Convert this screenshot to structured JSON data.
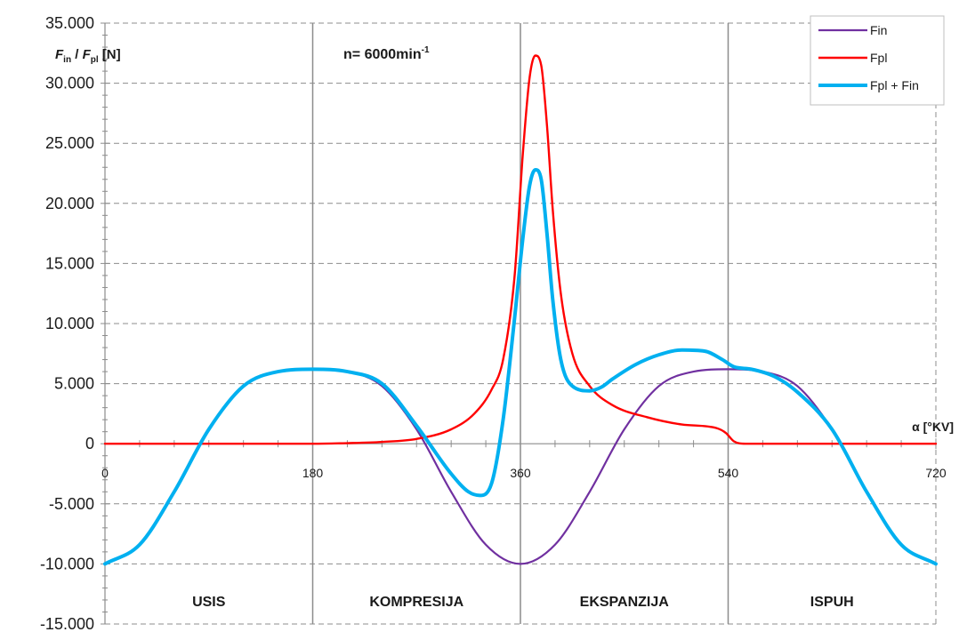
{
  "chart_data": {
    "type": "line",
    "ylabel": {
      "f": "F",
      "sub1": "in",
      "sep": " / ",
      "sub2": "pl",
      "unit": " [N]"
    },
    "xlabel": "α [°KV]",
    "annotation": {
      "base": "n= 6000min",
      "sup": "-1"
    },
    "xlim": [
      0,
      720
    ],
    "ylim": [
      -15000,
      35000
    ],
    "x_ticks": [
      0,
      180,
      360,
      540,
      720
    ],
    "x_tick_labels": [
      "0",
      "180",
      "360",
      "540",
      "720"
    ],
    "x_minor_step": 30,
    "y_ticks": [
      -15000,
      -10000,
      -5000,
      0,
      5000,
      10000,
      15000,
      20000,
      25000,
      30000,
      35000
    ],
    "y_tick_labels": [
      "-15.000",
      "-10.000",
      "-5.000",
      "0",
      "5.000",
      "10.000",
      "15.000",
      "20.000",
      "25.000",
      "30.000",
      "35.000"
    ],
    "y_minor_step": 1000,
    "grid": true,
    "phase_dividers": [
      180,
      360,
      540
    ],
    "phases": [
      {
        "label": "USIS",
        "center": 90
      },
      {
        "label": "KOMPRESIJA",
        "center": 270
      },
      {
        "label": "EKSPANZIJA",
        "center": 450
      },
      {
        "label": "ISPUH",
        "center": 630
      }
    ],
    "legend_position": "top-right",
    "series": [
      {
        "name": "Fin",
        "color": "#7030a0",
        "x": [
          0,
          30,
          60,
          90,
          120,
          150,
          180,
          210,
          240,
          270,
          300,
          330,
          360,
          390,
          420,
          450,
          480,
          510,
          540,
          570,
          600,
          630,
          660,
          690,
          720
        ],
        "y": [
          -10000,
          -8400,
          -4000,
          1200,
          4800,
          6000,
          6200,
          6000,
          4800,
          1200,
          -4000,
          -8400,
          -10000,
          -8400,
          -4000,
          1200,
          4800,
          6000,
          6200,
          6000,
          4800,
          1200,
          -4000,
          -8400,
          -10000
        ]
      },
      {
        "name": "Fpl",
        "color": "#ff0000",
        "x": [
          0,
          60,
          120,
          180,
          210,
          240,
          270,
          300,
          320,
          335,
          345,
          355,
          362,
          368,
          373,
          378,
          383,
          388,
          395,
          405,
          420,
          440,
          470,
          500,
          530,
          538,
          545,
          555,
          570,
          600,
          660,
          720
        ],
        "y": [
          0,
          0,
          0,
          0,
          50,
          150,
          400,
          1200,
          2500,
          4500,
          7000,
          14000,
          24000,
          30500,
          32300,
          31500,
          26500,
          19500,
          12500,
          7500,
          4800,
          3200,
          2200,
          1600,
          1300,
          900,
          200,
          0,
          0,
          0,
          0,
          0
        ]
      },
      {
        "name": "Fpl + Fin",
        "color": "#00b0f0",
        "x": [
          0,
          30,
          60,
          90,
          120,
          150,
          180,
          210,
          240,
          270,
          300,
          315,
          325,
          335,
          345,
          355,
          362,
          368,
          373,
          378,
          383,
          388,
          395,
          405,
          420,
          430,
          440,
          460,
          480,
          500,
          520,
          535,
          545,
          560,
          580,
          600,
          630,
          660,
          690,
          720
        ],
        "y": [
          -10000,
          -8400,
          -4000,
          1200,
          4800,
          6000,
          6200,
          6000,
          5000,
          1500,
          -2500,
          -4000,
          -4300,
          -3300,
          2000,
          10500,
          17000,
          21500,
          22800,
          22000,
          17500,
          12000,
          7000,
          4800,
          4400,
          4700,
          5400,
          6600,
          7400,
          7800,
          7700,
          7000,
          6400,
          6200,
          5600,
          4300,
          1200,
          -4000,
          -8400,
          -10000
        ]
      }
    ]
  }
}
